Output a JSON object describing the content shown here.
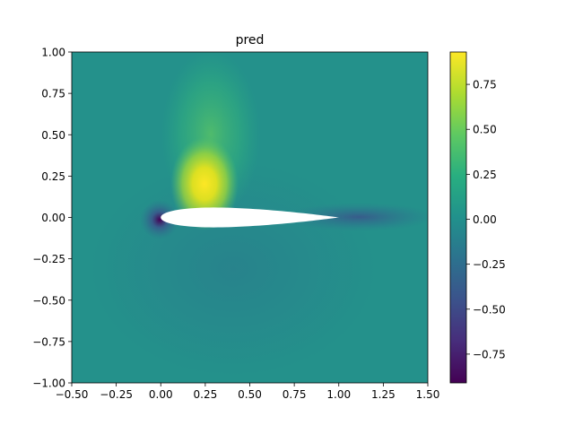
{
  "chart_data": {
    "type": "heatmap",
    "title": "pred",
    "xlabel": "",
    "ylabel": "",
    "xlim": [
      -0.5,
      1.5
    ],
    "ylim": [
      -1.0,
      1.0
    ],
    "x_ticks": [
      "−0.50",
      "−0.25",
      "0.00",
      "0.25",
      "0.50",
      "0.75",
      "1.00",
      "1.25",
      "1.50"
    ],
    "x_tick_values": [
      -0.5,
      -0.25,
      0.0,
      0.25,
      0.5,
      0.75,
      1.0,
      1.25,
      1.5
    ],
    "y_ticks": [
      "1.00",
      "0.75",
      "0.50",
      "0.25",
      "0.00",
      "−0.25",
      "−0.50",
      "−0.75",
      "−1.00"
    ],
    "y_tick_values": [
      1.0,
      0.75,
      0.5,
      0.25,
      0.0,
      -0.25,
      -0.5,
      -0.75,
      -1.0
    ],
    "colormap": "viridis",
    "colorbar": {
      "range": [
        -0.91,
        0.93
      ],
      "ticks": [
        "0.75",
        "0.50",
        "0.25",
        "0.00",
        "−0.25",
        "−0.50",
        "−0.75"
      ],
      "tick_values": [
        0.75,
        0.5,
        0.25,
        0.0,
        -0.25,
        -0.5,
        -0.75
      ]
    },
    "background_value": 0.05,
    "features": [
      {
        "name": "upper-surface-suction",
        "x": 0.28,
        "y": 0.12,
        "value": 0.93
      },
      {
        "name": "upper-plume",
        "x": 0.25,
        "y": 0.5,
        "value": 0.4
      },
      {
        "name": "leading-edge-stagnation",
        "x": 0.0,
        "y": -0.02,
        "value": -0.8
      },
      {
        "name": "trailing-edge-wake",
        "x": 1.0,
        "y": 0.0,
        "value": -0.25
      }
    ],
    "airfoil": {
      "leading_edge_x": 0.0,
      "trailing_edge_x": 1.0,
      "max_thickness": 0.12
    }
  }
}
